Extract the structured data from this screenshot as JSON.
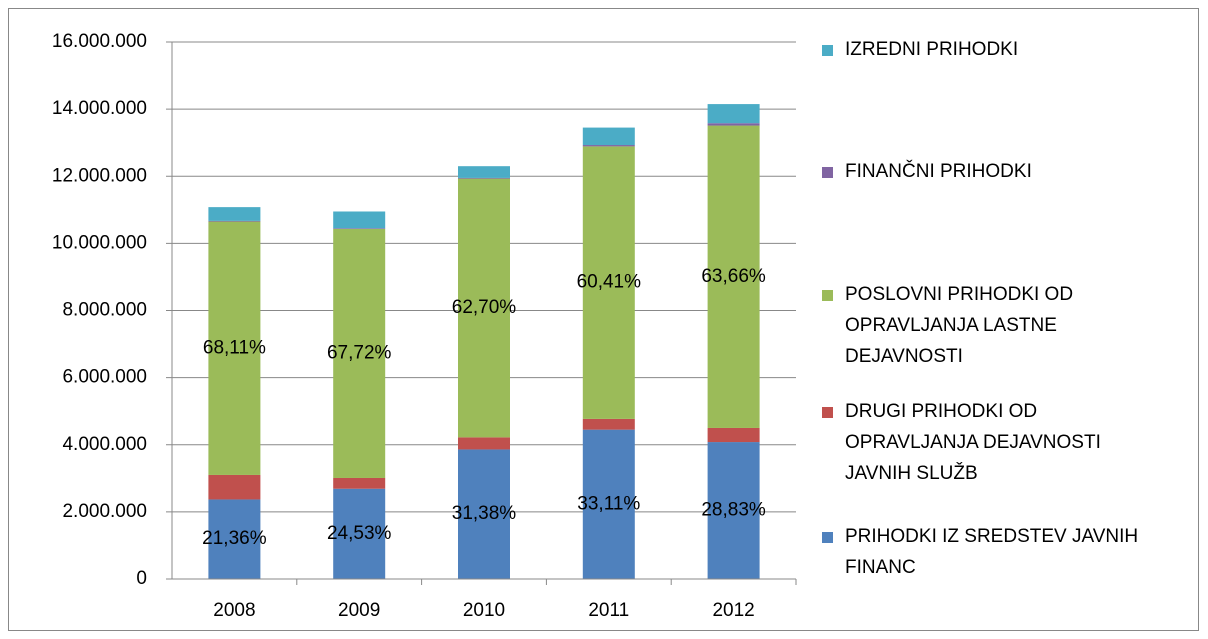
{
  "chart_data": {
    "type": "stacked_bar",
    "categories": [
      "2008",
      "2009",
      "2010",
      "2011",
      "2012"
    ],
    "series": [
      {
        "name": "PRIHODKI IZ SREDSTEV JAVNIH FINANC",
        "color": "#4f81bd",
        "values": [
          2370000,
          2690000,
          3860000,
          4450000,
          4080000
        ],
        "percent_labels": [
          "21,36%",
          "24,53%",
          "31,38%",
          "33,11%",
          "28,83%"
        ]
      },
      {
        "name": "DRUGI PRIHODKI OD OPRAVLJANJA DEJAVNOSTI JAVNIH SLUŽB",
        "color": "#c0504d",
        "values": [
          730000,
          320000,
          360000,
          320000,
          420000
        ]
      },
      {
        "name": "POSLOVNI PRIHODKI OD OPRAVLJANJA LASTNE DEJAVNOSTI",
        "color": "#9bbb59",
        "values": [
          7550000,
          7420000,
          7710000,
          8120000,
          9010000
        ],
        "percent_labels": [
          "68,11%",
          "67,72%",
          "62,70%",
          "60,41%",
          "63,66%"
        ]
      },
      {
        "name": "FINANČNI PRIHODKI",
        "color": "#8064a2",
        "values": [
          20000,
          20000,
          20000,
          40000,
          70000
        ]
      },
      {
        "name": "IZREDNI PRIHODKI",
        "color": "#4bacc6",
        "values": [
          410000,
          500000,
          350000,
          520000,
          570000
        ]
      }
    ],
    "ylim": [
      0,
      16000000
    ],
    "yticks": [
      0,
      {
        "value": 2000000,
        "label": "2.000.000"
      },
      {
        "value": 4000000,
        "label": "4.000.000"
      },
      {
        "value": 6000000,
        "label": "6.000.000"
      },
      {
        "value": 8000000,
        "label": "8.000.000"
      },
      {
        "value": 10000000,
        "label": "10.000.000"
      },
      {
        "value": 12000000,
        "label": "12.000.000"
      },
      {
        "value": 14000000,
        "label": "14.000.000"
      },
      {
        "value": 16000000,
        "label": "16.000.000"
      }
    ],
    "grid": true,
    "legend": "right"
  }
}
